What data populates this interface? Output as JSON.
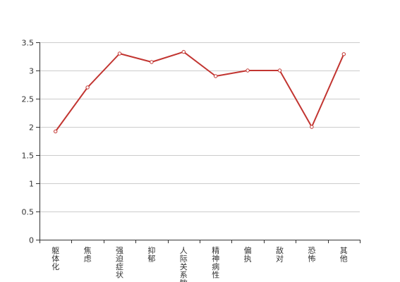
{
  "chart_data": {
    "type": "line",
    "categories": [
      "躯体化",
      "焦虑",
      "强迫症状",
      "抑郁",
      "人际关系敏感",
      "精神病性",
      "偏执",
      "敌对",
      "恐怖",
      "其他"
    ],
    "series": [
      {
        "values": [
          1.92,
          2.7,
          3.3,
          3.15,
          3.33,
          2.9,
          3.0,
          3.0,
          2.0,
          3.29
        ],
        "color": "#c23531"
      }
    ],
    "ylim": [
      0,
      3.5
    ],
    "yticks": [
      "0",
      "0.5",
      "1",
      "1.5",
      "2",
      "2.5",
      "3",
      "3.5"
    ],
    "grid": true,
    "title": "",
    "xlabel": "",
    "ylabel": ""
  }
}
